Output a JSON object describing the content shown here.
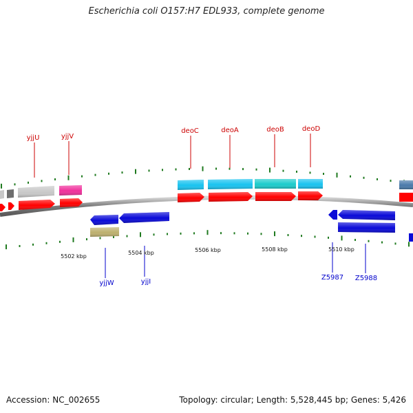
{
  "title": "Escherichia coli O157:H7 EDL933, complete genome",
  "accession": "Accession: NC_002655",
  "summary": "Topology: circular; Length: 5,528,445 bp; Genes: 5,426",
  "colors": {
    "backbone": "#8a8a8a",
    "tick": "#1f7a1f",
    "label_top": "#cc0000",
    "label_bottom": "#0000cc",
    "cds": "#ff0000",
    "gene_blue": "#0a0ad8",
    "gene_cyan": "#19c3f0",
    "gene_teal": "#1ccccc",
    "gene_gray": "#c8c8c8",
    "gene_dark": "#6e6e6e",
    "gene_pink": "#f0309c",
    "gene_olive": "#bdb06e",
    "gene_steel": "#4a7aaa"
  },
  "scale": {
    "unit": "kbp",
    "labels": [
      "5502 kbp",
      "5504 kbp",
      "5506 kbp",
      "5508 kbp",
      "5510 kbp"
    ]
  },
  "genes_top": [
    {
      "name": "yjjU",
      "color": "label_top"
    },
    {
      "name": "yjjV",
      "color": "label_top"
    },
    {
      "name": "deoC",
      "color": "label_top"
    },
    {
      "name": "deoA",
      "color": "label_top"
    },
    {
      "name": "deoB",
      "color": "label_top"
    },
    {
      "name": "deoD",
      "color": "label_top"
    }
  ],
  "genes_bottom": [
    {
      "name": "yjjW",
      "color": "label_bottom"
    },
    {
      "name": "yjjI",
      "color": "label_bottom"
    },
    {
      "name": "Z5987",
      "color": "label_bottom"
    },
    {
      "name": "Z5988",
      "color": "label_bottom"
    }
  ]
}
